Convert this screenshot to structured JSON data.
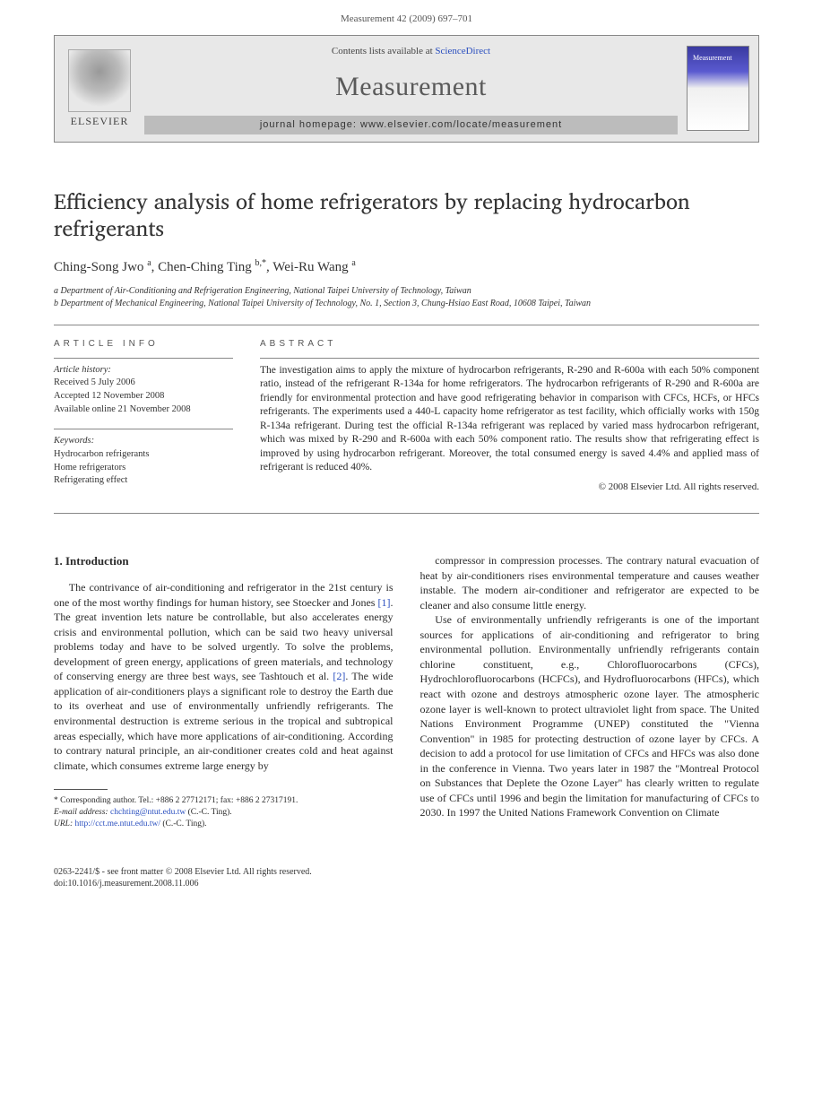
{
  "header": {
    "citation": "Measurement 42 (2009) 697–701"
  },
  "banner": {
    "contents_prefix": "Contents lists available at ",
    "contents_link": "ScienceDirect",
    "journal": "Measurement",
    "homepage_label": "journal homepage: www.elsevier.com/locate/measurement",
    "publisher": "ELSEVIER",
    "cover_label": "Measurement"
  },
  "article": {
    "title": "Efficiency analysis of home refrigerators by replacing hydrocarbon refrigerants",
    "authors_html": "Ching-Song Jwo <sup>a</sup>, Chen-Ching Ting <sup>b,*</sup>, Wei-Ru Wang <sup>a</sup>",
    "authors": [
      {
        "name": "Ching-Song Jwo",
        "aff": "a"
      },
      {
        "name": "Chen-Ching Ting",
        "aff": "b,*"
      },
      {
        "name": "Wei-Ru Wang",
        "aff": "a"
      }
    ],
    "affiliations": [
      "a Department of Air-Conditioning and Refrigeration Engineering, National Taipei University of Technology, Taiwan",
      "b Department of Mechanical Engineering, National Taipei University of Technology, No. 1, Section 3, Chung-Hsiao East Road, 10608 Taipei, Taiwan"
    ]
  },
  "info": {
    "label": "ARTICLE INFO",
    "history_label": "Article history:",
    "history": [
      "Received 5 July 2006",
      "Accepted 12 November 2008",
      "Available online 21 November 2008"
    ],
    "keywords_label": "Keywords:",
    "keywords": [
      "Hydrocarbon refrigerants",
      "Home refrigerators",
      "Refrigerating effect"
    ]
  },
  "abstract": {
    "label": "ABSTRACT",
    "text": "The investigation aims to apply the mixture of hydrocarbon refrigerants, R-290 and R-600a with each 50% component ratio, instead of the refrigerant R-134a for home refrigerators. The hydrocarbon refrigerants of R-290 and R-600a are friendly for environmental protection and have good refrigerating behavior in comparison with CFCs, HCFs, or HFCs refrigerants. The experiments used a 440-L capacity home refrigerator as test facility, which officially works with 150g R-134a refrigerant. During test the official R-134a refrigerant was replaced by varied mass hydrocarbon refrigerant, which was mixed by R-290 and R-600a with each 50% component ratio. The results show that refrigerating effect is improved by using hydrocarbon refrigerant. Moreover, the total consumed energy is saved 4.4% and applied mass of refrigerant is reduced 40%.",
    "copyright": "© 2008 Elsevier Ltd. All rights reserved."
  },
  "body": {
    "section_heading": "1. Introduction",
    "para1_a": "The contrivance of air-conditioning and refrigerator in the 21st century is one of the most worthy findings for human history, see Stoecker and Jones ",
    "ref1": "[1]",
    "para1_b": ". The great invention lets nature be controllable, but also accelerates energy crisis and environmental pollution, which can be said two heavy universal problems today and have to be solved urgently. To solve the problems, development of green energy, applications of green materials, and technology of conserving energy are three best ways, see Tashtouch et al. ",
    "ref2": "[2]",
    "para1_c": ". The wide application of air-conditioners plays a significant role to destroy the Earth due to its overheat and use of environmentally unfriendly refrigerants. The environmental destruction is extreme serious in the tropical and subtropical areas especially, which have more applications of air-conditioning. According to contrary natural principle, an air-conditioner creates cold and heat against climate, which consumes extreme large energy by ",
    "para_top_right": "compressor in compression processes. The contrary natural evacuation of heat by air-conditioners rises environmental temperature and causes weather instable. The modern air-conditioner and refrigerator are expected to be cleaner and also consume little energy.",
    "para2": "Use of environmentally unfriendly refrigerants is one of the important sources for applications of air-conditioning and refrigerator to bring environmental pollution. Environmentally unfriendly refrigerants contain chlorine constituent, e.g., Chlorofluorocarbons (CFCs), Hydrochlorofluorocarbons (HCFCs), and Hydrofluorocarbons (HFCs), which react with ozone and destroys atmospheric ozone layer. The atmospheric ozone layer is well-known to protect ultraviolet light from space. The United Nations Environment Programme (UNEP) constituted the \"Vienna Convention\" in 1985 for protecting destruction of ozone layer by CFCs. A decision to add a protocol for use limitation of CFCs and HFCs was also done in the conference in Vienna. Two years later in 1987 the \"Montreal Protocol on Substances that Deplete the Ozone Layer\" has clearly written to regulate use of CFCs until 1996 and begin the limitation for manufacturing of CFCs to 2030. In 1997 the United Nations Framework Convention on Climate"
  },
  "footnote": {
    "corresponding": "* Corresponding author. Tel.: +886 2 27712171; fax: +886 2 27317191.",
    "email_label": "E-mail address:",
    "email": "chchting@ntut.edu.tw",
    "email_who": " (C.-C. Ting).",
    "url_label": "URL:",
    "url": "http://cct.me.ntut.edu.tw/",
    "url_who": " (C.-C. Ting)."
  },
  "footer": {
    "line1": "0263-2241/$ - see front matter © 2008 Elsevier Ltd. All rights reserved.",
    "line2": "doi:10.1016/j.measurement.2008.11.006"
  },
  "colors": {
    "link": "#2a4fbf",
    "text": "#2a2a2a",
    "banner_bg": "#e8e8e8",
    "rule": "#888888"
  },
  "typography": {
    "body_font": "Times New Roman",
    "title_fontsize_pt": 18,
    "body_fontsize_pt": 9,
    "abstract_fontsize_pt": 8.5
  }
}
